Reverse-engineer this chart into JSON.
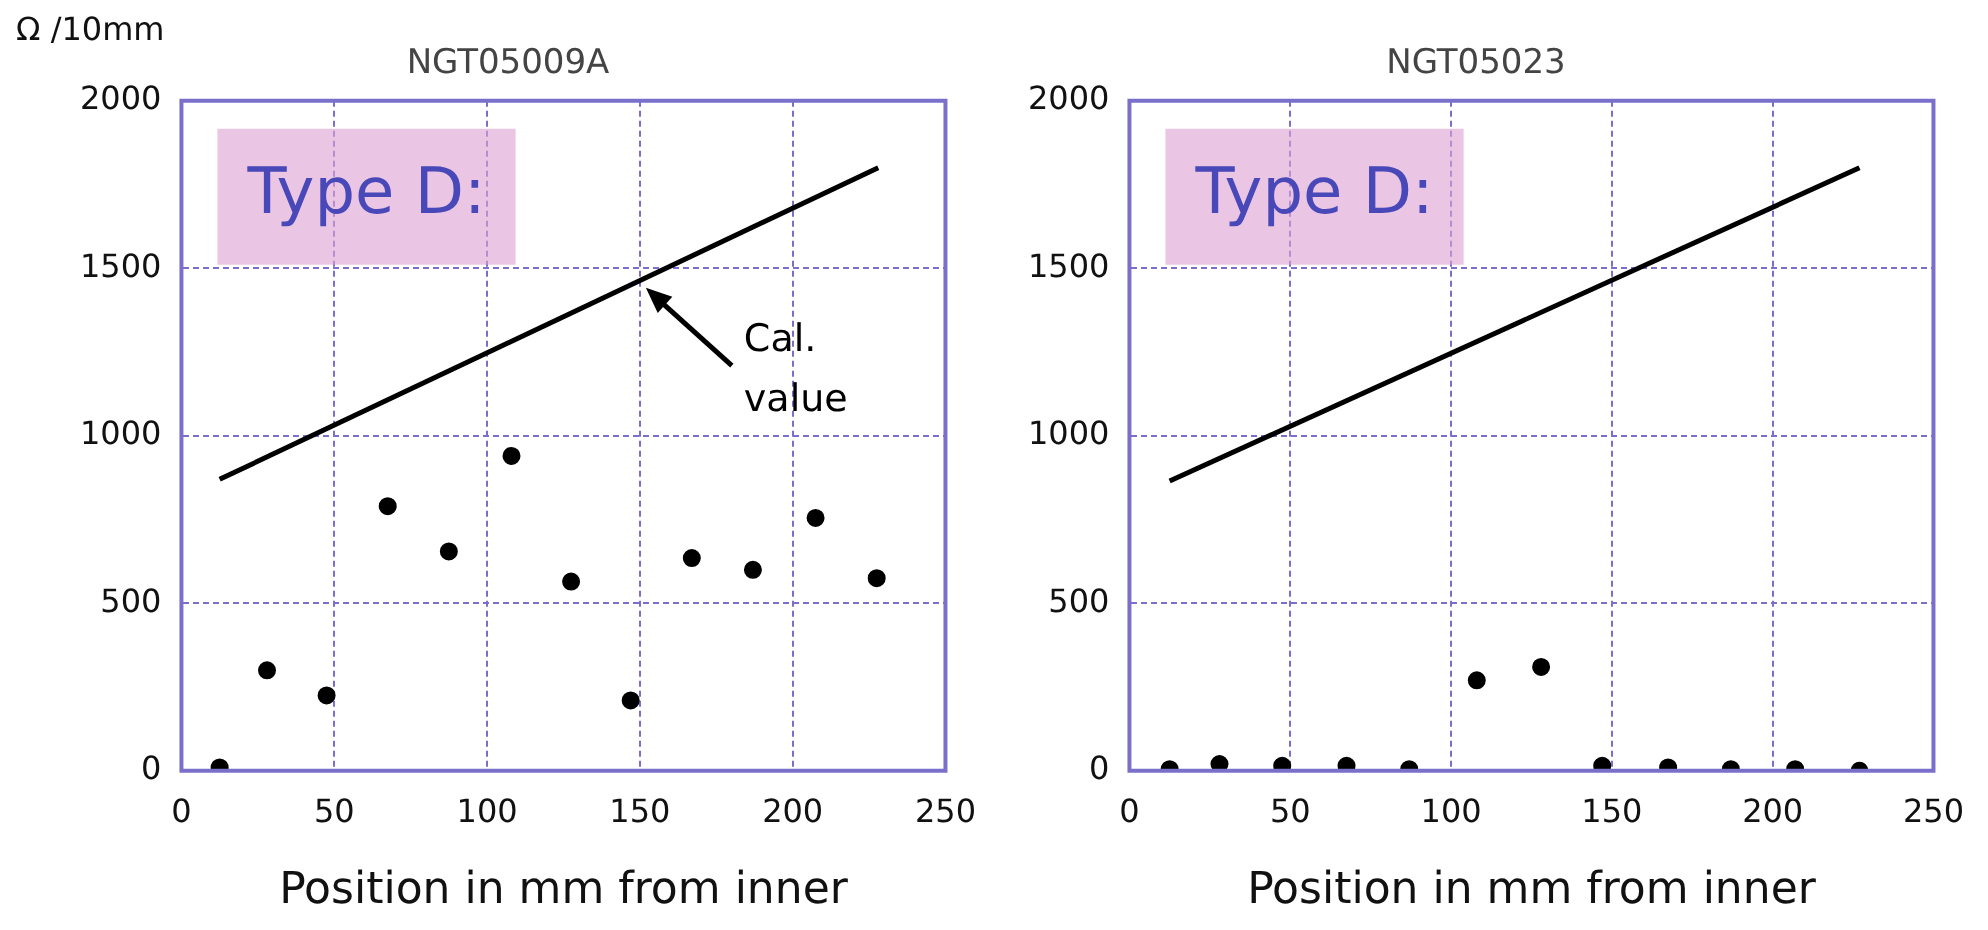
{
  "chart_data": [
    {
      "type": "scatter",
      "title": "NGT05009A",
      "xlabel": "Position in mm from inner",
      "ylabel": "Ω /10mm",
      "series": [
        {
          "type": "line",
          "marker": "none",
          "color": "#000000",
          "x": [
            12.5,
            228
          ],
          "values": [
            870,
            1800
          ]
        },
        {
          "type": "scatter",
          "color": "#000000",
          "x": [
            12.5,
            28,
            47.5,
            67.5,
            87.5,
            108,
            127.5,
            147,
            167,
            187,
            207.5,
            227.5
          ],
          "values": [
            10,
            300,
            225,
            790,
            655,
            940,
            565,
            210,
            635,
            600,
            755,
            575
          ]
        }
      ],
      "xlim": [
        0,
        250
      ],
      "xticks": [
        0,
        50,
        100,
        150,
        200,
        250
      ],
      "ylim": [
        0,
        2000
      ],
      "yticks": [
        0,
        500,
        1000,
        1500,
        2000
      ],
      "grid": true,
      "marker": "circle",
      "annotations": [
        "Type D:",
        {
          "text": "Cal. value",
          "x": 150,
          "y": 1460
        }
      ]
    },
    {
      "type": "scatter",
      "title": "NGT05023",
      "xlabel": "Position in mm from inner",
      "series": [
        {
          "type": "line",
          "marker": "none",
          "color": "#000000",
          "x": [
            12.5,
            227
          ],
          "values": [
            865,
            1800
          ]
        },
        {
          "type": "scatter",
          "color": "#000000",
          "x": [
            12.5,
            28,
            47.5,
            67.5,
            87,
            108,
            128,
            147,
            167.5,
            187,
            207,
            227
          ],
          "values": [
            5,
            20,
            15,
            15,
            5,
            270,
            310,
            15,
            10,
            5,
            5,
            0
          ]
        }
      ],
      "xlim": [
        0,
        250
      ],
      "xticks": [
        0,
        50,
        100,
        150,
        200,
        250
      ],
      "ylim": [
        0,
        2000
      ],
      "yticks": [
        0,
        500,
        1000,
        1500,
        2000
      ],
      "grid": true,
      "marker": "circle",
      "annotations": [
        "Type D:"
      ]
    }
  ]
}
